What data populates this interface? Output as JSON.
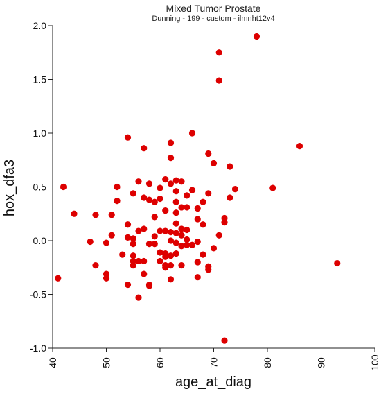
{
  "chart_data": {
    "type": "scatter",
    "title": "Mixed Tumor Prostate",
    "subtitle": "Dunning - 199 - custom - ilmnht12v4",
    "xlabel": "age_at_diag",
    "ylabel": "hox_dfa3",
    "xlim": [
      40,
      100
    ],
    "ylim": [
      -1.0,
      2.0
    ],
    "x_ticks": [
      "40",
      "50",
      "60",
      "70",
      "80",
      "90",
      "100"
    ],
    "y_ticks": [
      "-1.0",
      "-0.5",
      "0.0",
      "0.5",
      "1.0",
      "1.5",
      "2.0"
    ],
    "grid": false,
    "point_color": "#dd0000",
    "series": [
      {
        "points": [
          [
            41,
            -0.35
          ],
          [
            42,
            0.5
          ],
          [
            44,
            0.25
          ],
          [
            47,
            -0.01
          ],
          [
            48,
            0.24
          ],
          [
            48,
            -0.23
          ],
          [
            50,
            -0.02
          ],
          [
            50,
            -0.31
          ],
          [
            50,
            -0.35
          ],
          [
            51,
            0.05
          ],
          [
            51,
            0.24
          ],
          [
            52,
            0.5
          ],
          [
            52,
            0.37
          ],
          [
            53,
            -0.13
          ],
          [
            54,
            0.96
          ],
          [
            54,
            0.15
          ],
          [
            54,
            0.03
          ],
          [
            54,
            -0.41
          ],
          [
            55,
            0.44
          ],
          [
            55,
            0.02
          ],
          [
            55,
            -0.03
          ],
          [
            55,
            -0.14
          ],
          [
            55,
            -0.23
          ],
          [
            55,
            -0.19
          ],
          [
            56,
            0.55
          ],
          [
            56,
            0.09
          ],
          [
            56,
            -0.19
          ],
          [
            56,
            -0.53
          ],
          [
            57,
            0.86
          ],
          [
            57,
            0.4
          ],
          [
            57,
            0.11
          ],
          [
            57,
            -0.19
          ],
          [
            57,
            -0.31
          ],
          [
            58,
            0.53
          ],
          [
            58,
            0.38
          ],
          [
            58,
            -0.03
          ],
          [
            58,
            -0.41
          ],
          [
            58,
            -0.42
          ],
          [
            59,
            0.36
          ],
          [
            59,
            0.22
          ],
          [
            59,
            0.04
          ],
          [
            59,
            -0.03
          ],
          [
            60,
            0.49
          ],
          [
            60,
            0.39
          ],
          [
            60,
            0.09
          ],
          [
            60,
            -0.11
          ],
          [
            60,
            -0.19
          ],
          [
            61,
            0.57
          ],
          [
            61,
            0.28
          ],
          [
            61,
            0.09
          ],
          [
            61,
            -0.12
          ],
          [
            61,
            -0.15
          ],
          [
            61,
            -0.23
          ],
          [
            61,
            -0.25
          ],
          [
            62,
            0.91
          ],
          [
            62,
            0.77
          ],
          [
            62,
            0.53
          ],
          [
            62,
            0.08
          ],
          [
            62,
            0.0
          ],
          [
            62,
            -0.14
          ],
          [
            62,
            -0.23
          ],
          [
            62,
            -0.36
          ],
          [
            63,
            0.56
          ],
          [
            63,
            0.46
          ],
          [
            63,
            0.36
          ],
          [
            63,
            0.26
          ],
          [
            63,
            0.16
          ],
          [
            63,
            0.07
          ],
          [
            63,
            -0.02
          ],
          [
            63,
            -0.12
          ],
          [
            64,
            0.55
          ],
          [
            64,
            0.31
          ],
          [
            64,
            0.11
          ],
          [
            64,
            0.05
          ],
          [
            64,
            -0.05
          ],
          [
            64,
            -0.23
          ],
          [
            65,
            0.42
          ],
          [
            65,
            0.31
          ],
          [
            65,
            0.1
          ],
          [
            65,
            0.01
          ],
          [
            65,
            -0.04
          ],
          [
            66,
            1.0
          ],
          [
            66,
            0.47
          ],
          [
            66,
            -0.04
          ],
          [
            67,
            0.3
          ],
          [
            67,
            0.2
          ],
          [
            67,
            -0.01
          ],
          [
            67,
            -0.2
          ],
          [
            67,
            -0.34
          ],
          [
            68,
            0.36
          ],
          [
            68,
            0.15
          ],
          [
            68,
            -0.13
          ],
          [
            69,
            0.81
          ],
          [
            69,
            0.44
          ],
          [
            69,
            -0.24
          ],
          [
            69,
            -0.27
          ],
          [
            70,
            0.72
          ],
          [
            70,
            -0.07
          ],
          [
            71,
            1.75
          ],
          [
            71,
            1.49
          ],
          [
            71,
            0.05
          ],
          [
            72,
            0.21
          ],
          [
            72,
            0.17
          ],
          [
            72,
            -0.93
          ],
          [
            73,
            0.69
          ],
          [
            73,
            0.4
          ],
          [
            74,
            0.48
          ],
          [
            78,
            1.9
          ],
          [
            81,
            0.49
          ],
          [
            86,
            0.88
          ],
          [
            93,
            -0.21
          ]
        ]
      }
    ]
  }
}
